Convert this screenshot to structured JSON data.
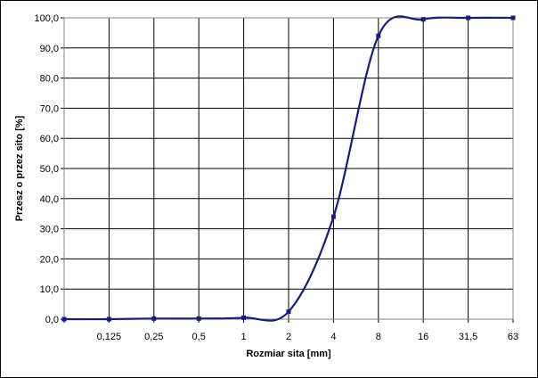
{
  "chart_data": {
    "type": "line",
    "xlabel": "Rozmiar sita [mm]",
    "ylabel": "Przesz  o przez sito [%]",
    "categories": [
      "",
      "0,125",
      "0,25",
      "0,5",
      "1",
      "2",
      "4",
      "8",
      "16",
      "31,5",
      "63"
    ],
    "x_scale": "log",
    "ylim": [
      0,
      100
    ],
    "y_ticks": [
      "0,0",
      "10,0",
      "20,0",
      "30,0",
      "40,0",
      "50,0",
      "60,0",
      "70,0",
      "80,0",
      "90,0",
      "100,0"
    ],
    "grid": true,
    "series": [
      {
        "color": "#1a1a80",
        "values": [
          0,
          0,
          0.2,
          0.2,
          0.5,
          2.5,
          34,
          94,
          99.5,
          100,
          100
        ]
      }
    ]
  }
}
